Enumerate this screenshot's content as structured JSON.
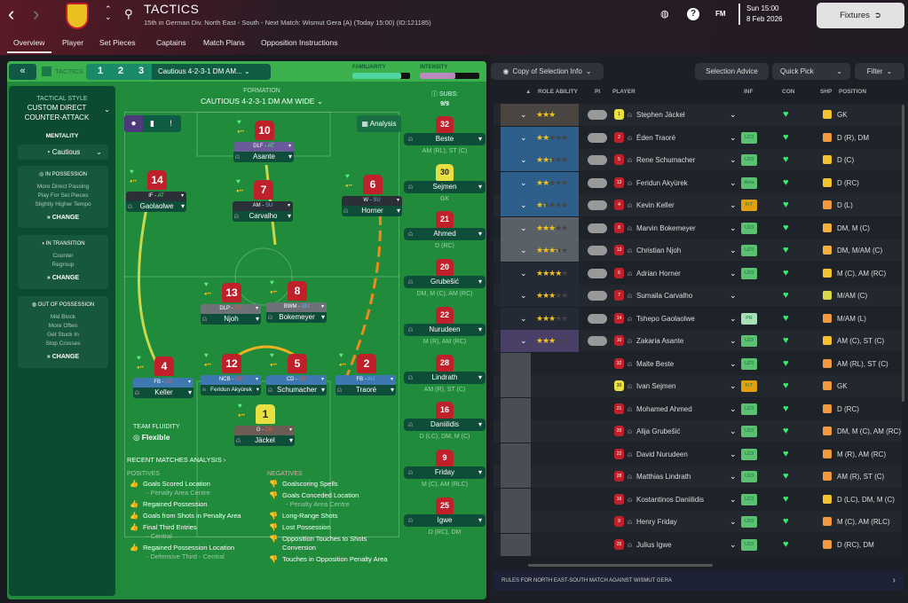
{
  "header": {
    "title": "TACTICS",
    "subtitle": "15th in German Div. North East - South - Next Match: Wismut Gera (A) (Today 15:00) (ID:121185)",
    "fm_label": "FM",
    "day_time": "Sun 15:00",
    "date": "8 Feb 2026",
    "fixtures_label": "Fixtures"
  },
  "tabs": [
    "Overview",
    "Player",
    "Set Pieces",
    "Captains",
    "Match Plans",
    "Opposition Instructions"
  ],
  "tacticsbar": {
    "collapse": "«",
    "label": "TACTICS",
    "slots": [
      "1",
      "2",
      "3"
    ],
    "selected": "Cautious 4-2-3-1 DM AM...",
    "familiarity_label": "FAMILIARITY",
    "familiarity": 0.85,
    "intensity_label": "INTENSITY",
    "intensity": 0.6,
    "familiarity_color": "#4fd6a0",
    "intensity_color": "#b88ac0"
  },
  "style": {
    "heading": "TACTICAL STYLE",
    "name1": "CUSTOM DIRECT",
    "name2": "COUNTER-ATTACK",
    "mentality_label": "MENTALITY",
    "mentality": "Cautious",
    "in_possession": {
      "title": "IN POSSESSION",
      "items": [
        "More Direct Passing",
        "Play For Set Pieces",
        "Slightly Higher Tempo"
      ]
    },
    "in_transition": {
      "title": "IN TRANSITION",
      "items": [
        "Counter",
        "Regroup"
      ]
    },
    "out_possession": {
      "title": "OUT OF POSSESSION",
      "items": [
        "Mid Block",
        "More Often",
        "Get Stuck In",
        "Stop Crosses"
      ]
    },
    "change": "CHANGE"
  },
  "formation": {
    "label": "FORMATION",
    "name": "CAUTIOUS 4-2-3-1 DM AM WIDE",
    "analysis": "Analysis",
    "fluidity_label": "TEAM FLUIDITY",
    "fluidity": "Flexible"
  },
  "pitch": [
    {
      "num": "10",
      "role": "DLF",
      "duty": "AT",
      "name": "Asante"
    },
    {
      "num": "14",
      "role": "IF",
      "duty": "AT",
      "name": "Gaolaolwe"
    },
    {
      "num": "7",
      "role": "AM",
      "duty": "SU",
      "name": "Carvalho"
    },
    {
      "num": "6",
      "role": "W",
      "duty": "SU",
      "name": "Horner"
    },
    {
      "num": "13",
      "role": "DLP",
      "duty": "DE",
      "name": "Njoh"
    },
    {
      "num": "8",
      "role": "BWM",
      "duty": "SU",
      "name": "Bokemeyer"
    },
    {
      "num": "4",
      "role": "FB",
      "duty": "DE",
      "name": "Keller"
    },
    {
      "num": "12",
      "role": "NCB",
      "duty": "DE",
      "name": "Feridun Akyürek"
    },
    {
      "num": "5",
      "role": "CD",
      "duty": "DE",
      "name": "Schumacher"
    },
    {
      "num": "2",
      "role": "FB",
      "duty": "AU",
      "name": "Traoré"
    },
    {
      "num": "1",
      "role": "G",
      "duty": "DE",
      "name": "Jäckel"
    }
  ],
  "subs": {
    "label": "SUBS:",
    "count": "9/9",
    "players": [
      {
        "num": "32",
        "name": "Beste",
        "pos": "AM (RL), ST (C)"
      },
      {
        "num": "30",
        "name": "Sejmen",
        "pos": "GK"
      },
      {
        "num": "21",
        "name": "Ahmed",
        "pos": "D (RC)"
      },
      {
        "num": "20",
        "name": "Grubešić",
        "pos": "DM, M (C), AM (RC)"
      },
      {
        "num": "22",
        "name": "Nurudeen",
        "pos": "M (R), AM (RC)"
      },
      {
        "num": "28",
        "name": "Lindrath",
        "pos": "AM (R), ST (C)"
      },
      {
        "num": "16",
        "name": "Daniilidis",
        "pos": "D (LC), DM, M (C)"
      },
      {
        "num": "9",
        "name": "Friday",
        "pos": "M (C), AM (RLC)"
      },
      {
        "num": "25",
        "name": "Igwe",
        "pos": "D (RC), DM"
      }
    ]
  },
  "analysis": {
    "title": "RECENT MATCHES ANALYSIS ›",
    "positives_label": "POSITIVES",
    "negatives_label": "NEGATIVES",
    "positives": [
      {
        "t": "Goals Scored Location",
        "s": "- Penalty Area Centre"
      },
      {
        "t": "Regained Possession",
        "s": ""
      },
      {
        "t": "Goals from Shots in Penalty Area",
        "s": ""
      },
      {
        "t": "Final Third Entries",
        "s": "- Central"
      },
      {
        "t": "Regained Possession Location",
        "s": "- Defensive Third - Central"
      }
    ],
    "negatives": [
      {
        "t": "Goalscoring Spells",
        "s": ""
      },
      {
        "t": "Goals Conceded Location",
        "s": "- Penalty Area Centre"
      },
      {
        "t": "Long-Range Shots",
        "s": ""
      },
      {
        "t": "Lost Possession",
        "s": ""
      },
      {
        "t": "Opposition Touches to Shots Conversion",
        "s": ""
      },
      {
        "t": "Touches in Opposition Penalty Area",
        "s": ""
      }
    ]
  },
  "selection": {
    "copy_label": "Copy of Selection Info",
    "advice": "Selection Advice",
    "quick_pick": "Quick Pick",
    "filter": "Filter",
    "columns": [
      "ROLE ABILITY",
      "PI",
      "PLAYER",
      "INF",
      "CON",
      "SHP",
      "POSITION"
    ],
    "rows": [
      {
        "name": "Stephen Jäckel",
        "num": "1",
        "gk": true,
        "stars": 3,
        "inf": "",
        "shp": "#f2c230",
        "pos": "GK"
      },
      {
        "name": "Éden Traoré",
        "num": "2",
        "stars": 2,
        "inf": "U23",
        "shp": "#f39a40",
        "pos": "D (R), DM"
      },
      {
        "name": "Rene Schumacher",
        "num": "5",
        "stars": 2.5,
        "inf": "U23",
        "shp": "#f2c230",
        "pos": "D (C)"
      },
      {
        "name": "Feridun Akyürek",
        "num": "12",
        "stars": 2,
        "inf": "Ama",
        "shp": "#f2c230",
        "pos": "D (RC)"
      },
      {
        "name": "Kevin Keller",
        "num": "4",
        "stars": 1.5,
        "inf": "FrT",
        "shp": "#f39a40",
        "pos": "D (L)"
      },
      {
        "name": "Marvin Bokemeyer",
        "num": "8",
        "stars": 3,
        "inf": "U23",
        "shp": "#f5b040",
        "pos": "DM, M (C)"
      },
      {
        "name": "Christian Njoh",
        "num": "13",
        "stars": 3.5,
        "inf": "U23",
        "shp": "#f5b040",
        "pos": "DM, M/AM (C)"
      },
      {
        "name": "Adrian Horner",
        "num": "6",
        "stars": 4,
        "inf": "U23",
        "shp": "#f2c230",
        "pos": "M (C), AM (RC)"
      },
      {
        "name": "Sumaila Carvalho",
        "num": "7",
        "stars": 3,
        "inf": "",
        "shp": "#d9d84a",
        "pos": "M/AM (C)"
      },
      {
        "name": "Tshepo Gaolaolwe",
        "num": "14",
        "stars": 3,
        "inf": "PR",
        "shp": "#f39a40",
        "pos": "M/AM (L)"
      },
      {
        "name": "Zakaria Asante",
        "num": "10",
        "stars": 3,
        "inf": "U23",
        "shp": "#f2c230",
        "pos": "AM (C), ST (C)"
      },
      {
        "name": "Malte Beste",
        "num": "32",
        "stars": null,
        "inf": "U23",
        "shp": "#f39a40",
        "pos": "AM (RL), ST (C)"
      },
      {
        "name": "Ivan Sejmen",
        "num": "30",
        "gk": true,
        "stars": null,
        "inf": "FrT",
        "shp": "#f39a40",
        "pos": "GK"
      },
      {
        "name": "Mohamed Ahmed",
        "num": "21",
        "stars": null,
        "inf": "U23",
        "shp": "#f39a40",
        "pos": "D (RC)"
      },
      {
        "name": "Alija Grubešić",
        "num": "20",
        "stars": null,
        "inf": "U23",
        "shp": "#f39a40",
        "pos": "DM, M (C), AM (RC)"
      },
      {
        "name": "David Nurudeen",
        "num": "22",
        "stars": null,
        "inf": "U23",
        "shp": "#f39a40",
        "pos": "M (R), AM (RC)"
      },
      {
        "name": "Matthias Lindrath",
        "num": "28",
        "stars": null,
        "inf": "U23",
        "shp": "#f39a40",
        "pos": "AM (R), ST (C)"
      },
      {
        "name": "Kostantinos Daniilidis",
        "num": "16",
        "stars": null,
        "inf": "U23",
        "shp": "#f2c230",
        "pos": "D (LC), DM, M (C)"
      },
      {
        "name": "Henry Friday",
        "num": "9",
        "stars": null,
        "inf": "U23",
        "shp": "#f39a40",
        "pos": "M (C), AM (RLC)"
      },
      {
        "name": "Julius Igwe",
        "num": "25",
        "stars": null,
        "inf": "U23",
        "shp": "#f39a40",
        "pos": "D (RC), DM"
      }
    ]
  },
  "footer": "RULES FOR NORTH EAST-SOUTH MATCH AGAINST WISMUT GERA"
}
